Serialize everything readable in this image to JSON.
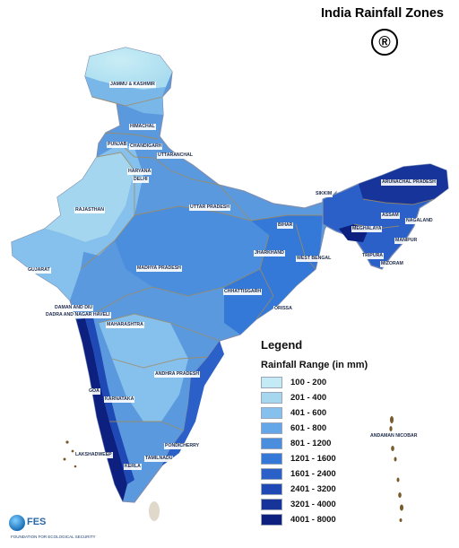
{
  "title": "India Rainfall Zones",
  "registered_mark": "®",
  "legend": {
    "title": "Legend",
    "subtitle": "Rainfall Range (in mm)",
    "items": [
      {
        "label": "100 - 200",
        "color": "#c4ebf5"
      },
      {
        "label": "201 - 400",
        "color": "#a6d7ef"
      },
      {
        "label": "401 - 600",
        "color": "#86c0ec"
      },
      {
        "label": "601 - 800",
        "color": "#64a6e7"
      },
      {
        "label": "801 - 1200",
        "color": "#4b8ede"
      },
      {
        "label": "1201 - 1600",
        "color": "#3579d8"
      },
      {
        "label": "1601 - 2400",
        "color": "#2a60c8"
      },
      {
        "label": "2401 - 3200",
        "color": "#1f49b4"
      },
      {
        "label": "3201 - 4000",
        "color": "#16349a"
      },
      {
        "label": "4001 - 8000",
        "color": "#0d2080"
      }
    ]
  },
  "regions": [
    {
      "name": "JAMMU & KASHMIR"
    },
    {
      "name": "HIMACHAL"
    },
    {
      "name": "PUNJAB"
    },
    {
      "name": "CHANDIGARH"
    },
    {
      "name": "UTTARANCHAL"
    },
    {
      "name": "HARYANA"
    },
    {
      "name": "DELHI"
    },
    {
      "name": "RAJASTHAN"
    },
    {
      "name": "UTTAR PRADESH"
    },
    {
      "name": "SIKKIM"
    },
    {
      "name": "ARUNACHAL PRADESH"
    },
    {
      "name": "ASSAM"
    },
    {
      "name": "NAGALAND"
    },
    {
      "name": "MEGHALAYA"
    },
    {
      "name": "MANIPUR"
    },
    {
      "name": "BIHAR"
    },
    {
      "name": "TRIPURA"
    },
    {
      "name": "MIZORAM"
    },
    {
      "name": "JHARKHAND"
    },
    {
      "name": "WEST BENGAL"
    },
    {
      "name": "GUJARAT"
    },
    {
      "name": "MADHYA PRADESH"
    },
    {
      "name": "CHHATTISGARH"
    },
    {
      "name": "ORISSA"
    },
    {
      "name": "DAMAN AND DIU"
    },
    {
      "name": "DADRA AND NAGAR HAVELI"
    },
    {
      "name": "MAHARASHTRA"
    },
    {
      "name": "ANDHRA PRADESH"
    },
    {
      "name": "GOA"
    },
    {
      "name": "KARNATAKA"
    },
    {
      "name": "ANDAMAN NICOBAR"
    },
    {
      "name": "LAKSHADWEEP"
    },
    {
      "name": "PONDICHERRY"
    },
    {
      "name": "TAMILNADU"
    },
    {
      "name": "KERLA"
    }
  ],
  "footer": {
    "logo_text": "FES",
    "organization": "FOUNDATION FOR ECOLOGICAL SECURITY"
  }
}
